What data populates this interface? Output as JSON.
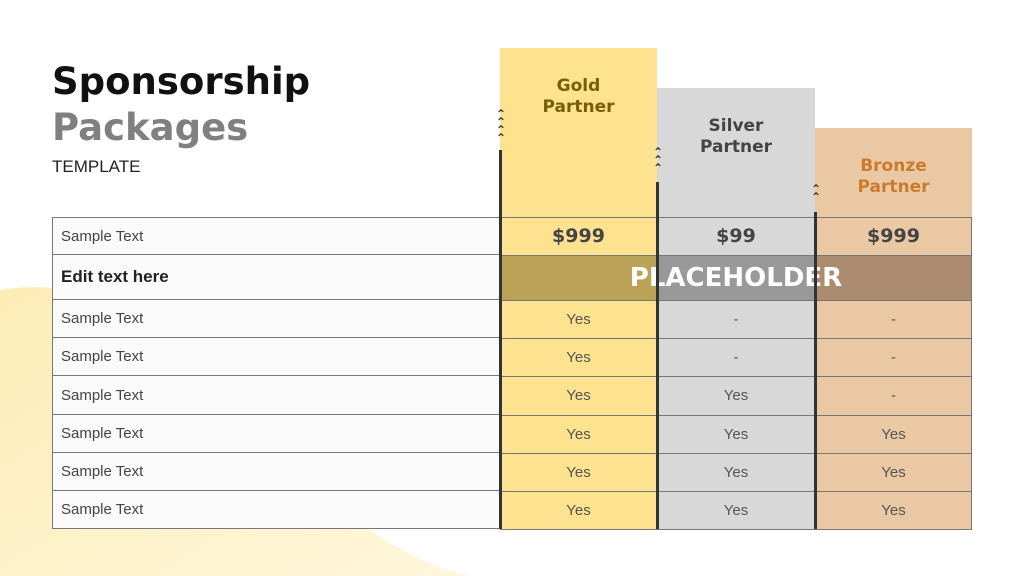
{
  "title_line1": "Sponsorship",
  "title_line2": "Packages",
  "subtitle": "TEMPLATE",
  "columns": [
    {
      "name": "Gold Partner",
      "color": "#fde28f",
      "text_color": "#7a5e05",
      "price": "$999",
      "values": [
        "Yes",
        "Yes",
        "Yes",
        "Yes",
        "Yes",
        "Yes"
      ]
    },
    {
      "name": "Silver Partner",
      "color": "#d8d8d8",
      "text_color": "#444444",
      "price": "$99",
      "values": [
        "-",
        "-",
        "Yes",
        "Yes",
        "Yes",
        "Yes"
      ]
    },
    {
      "name": "Bronze Partner",
      "color": "#ebc8a4",
      "text_color": "#c97b30",
      "price": "$999",
      "values": [
        "-",
        "-",
        "-",
        "Yes",
        "Yes",
        "Yes"
      ]
    }
  ],
  "rows": {
    "price_label": "Sample Text",
    "band_label": "Edit text here",
    "band_text": "PLACEHOLDER",
    "labels": [
      "Sample Text",
      "Sample Text",
      "Sample Text",
      "Sample Text",
      "Sample Text",
      "Sample Text"
    ]
  }
}
